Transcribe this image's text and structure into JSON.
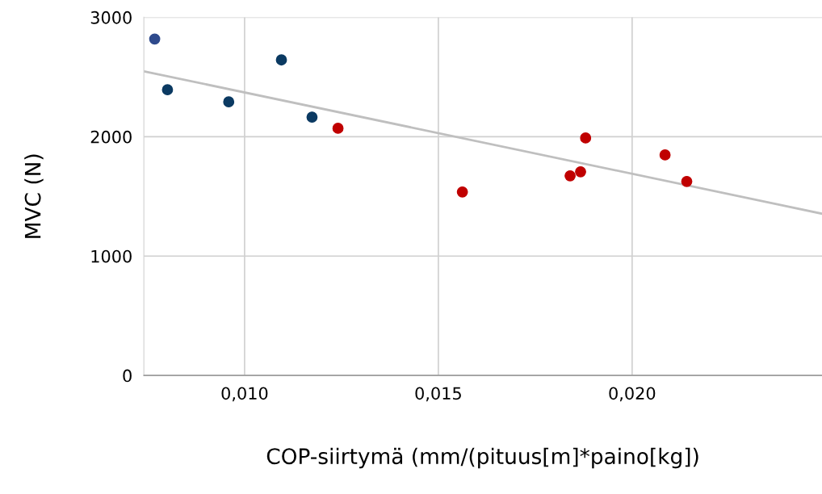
{
  "chart_data": {
    "type": "scatter",
    "xlabel": "COP-siirtymä (mm/(pituus[m]*paino[kg])",
    "ylabel": "MVC (N)",
    "xlim": [
      0.0074,
      0.0249
    ],
    "xticks": [
      {
        "value": 0.01,
        "label": "0,010"
      },
      {
        "value": 0.015,
        "label": "0,015"
      },
      {
        "value": 0.02,
        "label": "0,020"
      }
    ],
    "ylim": [
      0,
      3000
    ],
    "yticks": [
      0,
      1000,
      2000,
      3000
    ],
    "grid": true,
    "marker": "circle",
    "series": [
      {
        "colors": [
          "#2e4a8c",
          "#0b3a62",
          "#0b3a62",
          "#0b3a62",
          "#0b3a62"
        ],
        "x": [
          0.00768,
          0.00801,
          0.00959,
          0.01095,
          0.01174
        ],
        "values": [
          2818,
          2393,
          2292,
          2643,
          2164
        ]
      },
      {
        "color": "#c00000",
        "x": [
          0.01241,
          0.01562,
          0.0184,
          0.01867,
          0.0188,
          0.02085,
          0.02141
        ],
        "values": [
          2070,
          1537,
          1672,
          1706,
          1989,
          1847,
          1625
        ]
      },
      {
        "type": "line",
        "color": "#bfbfbf",
        "marker": "none",
        "x": [
          0.0074,
          0.0249
        ],
        "values": [
          2548,
          1355
        ]
      }
    ]
  }
}
